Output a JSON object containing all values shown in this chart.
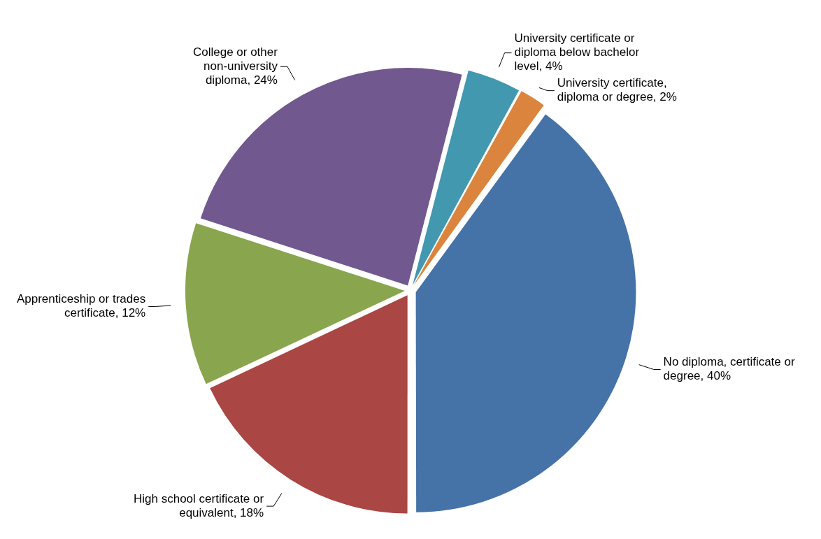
{
  "chart_data": {
    "type": "pie",
    "categories": [
      "No diploma, certificate or degree",
      "High school certificate or equivalent",
      "Apprenticeship or trades certificate",
      "College or other non-university diploma",
      "University certificate or diploma below bachelor level",
      "University certificate, diploma or degree"
    ],
    "values": [
      40,
      18,
      12,
      24,
      4,
      2
    ],
    "value_labels": [
      "40%",
      "18%",
      "12%",
      "24%",
      "4%",
      "2%"
    ],
    "colors": [
      "#4572a7",
      "#aa4643",
      "#89a54e",
      "#71588f",
      "#4198af",
      "#db843d"
    ],
    "legend": false
  }
}
